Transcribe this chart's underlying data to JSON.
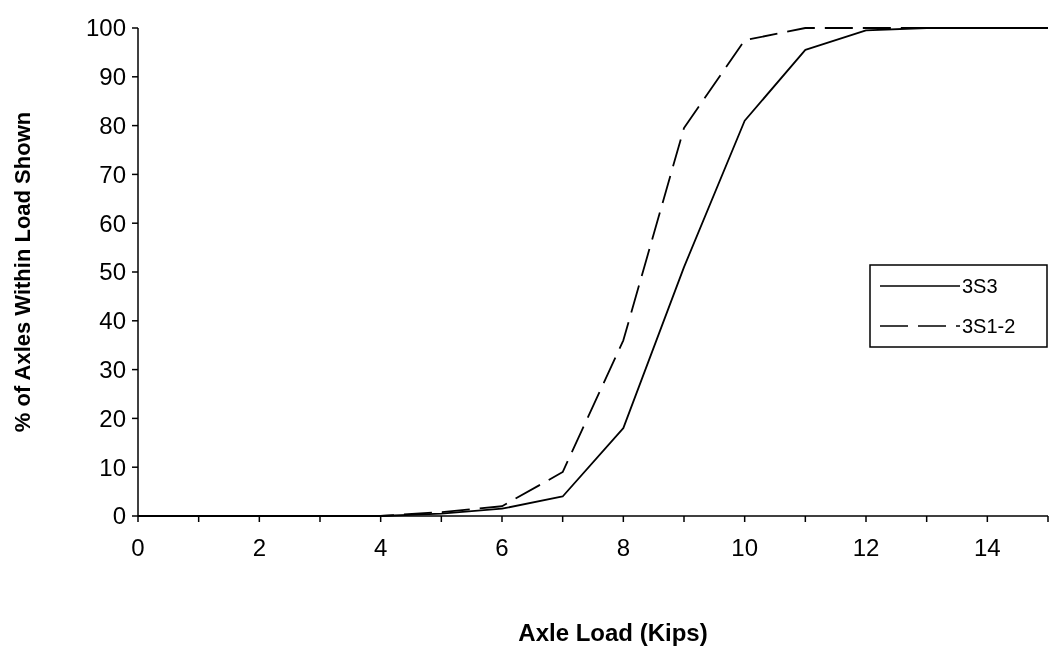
{
  "chart_data": {
    "type": "line",
    "xlabel": "Axle Load (Kips)",
    "ylabel": "% of Axles Within Load Shown",
    "x": [
      0,
      1,
      2,
      3,
      4,
      5,
      6,
      7,
      8,
      9,
      10,
      11,
      12,
      13,
      14,
      15
    ],
    "series": [
      {
        "name": "3S3",
        "color": "#000000",
        "line_style": "solid",
        "values": [
          0,
          0,
          0,
          0,
          0,
          0.5,
          1.5,
          4,
          18,
          51,
          81,
          95.5,
          99.5,
          100,
          100,
          100
        ]
      },
      {
        "name": "3S1-2",
        "color": "#000000",
        "line_style": "dashed",
        "values": [
          0,
          0,
          0,
          0,
          0,
          0.8,
          2,
          9,
          36,
          79.5,
          97.5,
          100,
          100,
          100,
          100,
          100
        ]
      }
    ],
    "xlim": [
      0,
      15
    ],
    "ylim": [
      0,
      100
    ],
    "xticks": [
      0,
      {
        "value": 1,
        "label": null
      },
      2,
      {
        "value": 3,
        "label": null
      },
      4,
      {
        "value": 5,
        "label": null
      },
      6,
      {
        "value": 7,
        "label": null
      },
      8,
      {
        "value": 9,
        "label": null
      },
      10,
      {
        "value": 11,
        "label": null
      },
      12,
      {
        "value": 13,
        "label": null
      },
      14,
      {
        "value": 15,
        "label": null
      }
    ],
    "yticks": [
      0,
      10,
      20,
      30,
      40,
      50,
      60,
      70,
      80,
      90,
      100
    ],
    "grid": false,
    "legend": "right",
    "marker": "none"
  }
}
